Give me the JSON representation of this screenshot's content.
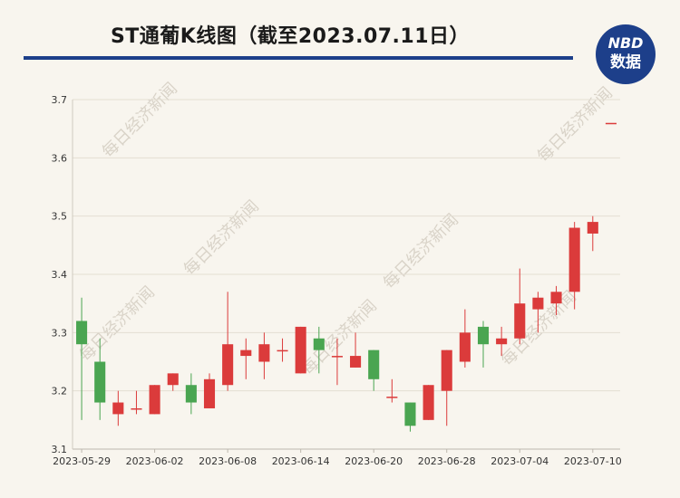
{
  "title": "ST通葡K线图（截至2023.07.11日）",
  "logo": {
    "line1": "NBD",
    "line2": "数据"
  },
  "watermark": "每日经济新闻",
  "colors": {
    "up": "#db3b3b",
    "down": "#4aa551",
    "accent": "#1d3f8a"
  },
  "chart_data": {
    "type": "candlestick",
    "title": "ST通葡K线图（截至2023.07.11日）",
    "ylim": [
      3.1,
      3.7
    ],
    "yticks": [
      3.1,
      3.2,
      3.3,
      3.4,
      3.5,
      3.6,
      3.7
    ],
    "xtick_labels": [
      "2023-05-29",
      "2023-06-02",
      "2023-06-08",
      "2023-06-14",
      "2023-06-20",
      "2023-06-28",
      "2023-07-04",
      "2023-07-10"
    ],
    "xtick_index": [
      0,
      4,
      8,
      12,
      16,
      20,
      24,
      28
    ],
    "grid": "horizontal",
    "legend": "none",
    "candles": [
      {
        "o": 3.32,
        "c": 3.28,
        "h": 3.36,
        "l": 3.15
      },
      {
        "o": 3.25,
        "c": 3.18,
        "h": 3.29,
        "l": 3.15
      },
      {
        "o": 3.16,
        "c": 3.18,
        "h": 3.2,
        "l": 3.14
      },
      {
        "o": 3.17,
        "c": 3.17,
        "h": 3.2,
        "l": 3.16
      },
      {
        "o": 3.16,
        "c": 3.21,
        "h": 3.21,
        "l": 3.16
      },
      {
        "o": 3.21,
        "c": 3.23,
        "h": 3.23,
        "l": 3.2
      },
      {
        "o": 3.21,
        "c": 3.18,
        "h": 3.23,
        "l": 3.16
      },
      {
        "o": 3.17,
        "c": 3.22,
        "h": 3.23,
        "l": 3.17
      },
      {
        "o": 3.21,
        "c": 3.28,
        "h": 3.37,
        "l": 3.2
      },
      {
        "o": 3.26,
        "c": 3.27,
        "h": 3.29,
        "l": 3.22
      },
      {
        "o": 3.25,
        "c": 3.28,
        "h": 3.3,
        "l": 3.22
      },
      {
        "o": 3.27,
        "c": 3.27,
        "h": 3.29,
        "l": 3.25
      },
      {
        "o": 3.23,
        "c": 3.31,
        "h": 3.31,
        "l": 3.23
      },
      {
        "o": 3.29,
        "c": 3.27,
        "h": 3.31,
        "l": 3.23
      },
      {
        "o": 3.26,
        "c": 3.26,
        "h": 3.29,
        "l": 3.21
      },
      {
        "o": 3.24,
        "c": 3.26,
        "h": 3.3,
        "l": 3.24
      },
      {
        "o": 3.27,
        "c": 3.22,
        "h": 3.27,
        "l": 3.2
      },
      {
        "o": 3.19,
        "c": 3.19,
        "h": 3.22,
        "l": 3.18
      },
      {
        "o": 3.18,
        "c": 3.14,
        "h": 3.18,
        "l": 3.13
      },
      {
        "o": 3.15,
        "c": 3.21,
        "h": 3.21,
        "l": 3.15
      },
      {
        "o": 3.2,
        "c": 3.27,
        "h": 3.27,
        "l": 3.14
      },
      {
        "o": 3.25,
        "c": 3.3,
        "h": 3.34,
        "l": 3.24
      },
      {
        "o": 3.31,
        "c": 3.28,
        "h": 3.32,
        "l": 3.24
      },
      {
        "o": 3.28,
        "c": 3.29,
        "h": 3.31,
        "l": 3.26
      },
      {
        "o": 3.29,
        "c": 3.35,
        "h": 3.41,
        "l": 3.28
      },
      {
        "o": 3.34,
        "c": 3.36,
        "h": 3.37,
        "l": 3.3
      },
      {
        "o": 3.35,
        "c": 3.37,
        "h": 3.38,
        "l": 3.33
      },
      {
        "o": 3.37,
        "c": 3.48,
        "h": 3.49,
        "l": 3.34
      },
      {
        "o": 3.47,
        "c": 3.49,
        "h": 3.5,
        "l": 3.44
      },
      {
        "o": 3.66,
        "c": 3.66,
        "h": 3.66,
        "l": 3.66
      }
    ]
  }
}
